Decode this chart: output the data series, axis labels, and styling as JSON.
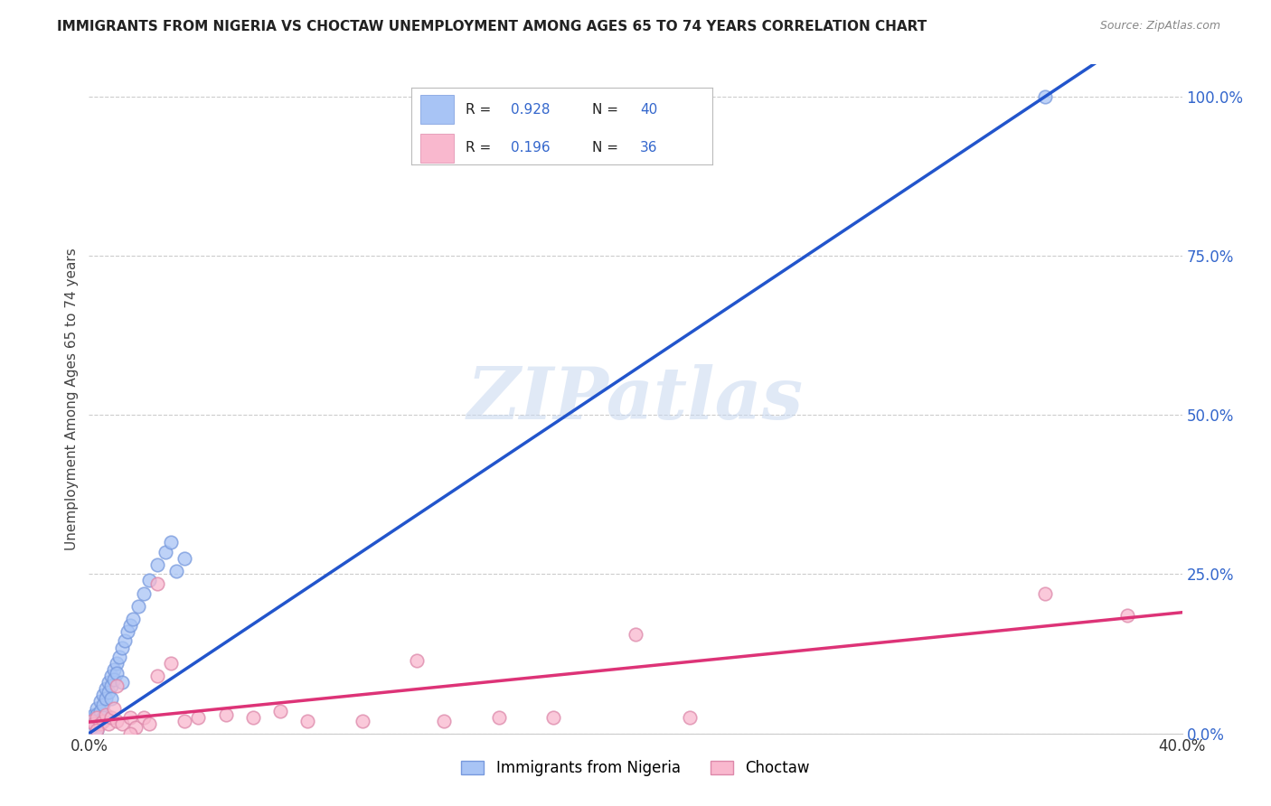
{
  "title": "IMMIGRANTS FROM NIGERIA VS CHOCTAW UNEMPLOYMENT AMONG AGES 65 TO 74 YEARS CORRELATION CHART",
  "source": "Source: ZipAtlas.com",
  "ylabel": "Unemployment Among Ages 65 to 74 years",
  "xmin": 0.0,
  "xmax": 0.4,
  "ymin": 0.0,
  "ymax": 1.05,
  "watermark": "ZIPatlas",
  "R_nigeria": 0.928,
  "N_nigeria": 40,
  "R_choctaw": 0.196,
  "N_choctaw": 36,
  "ytick_vals": [
    0.0,
    0.25,
    0.5,
    0.75,
    1.0
  ],
  "ytick_labels": [
    "0.0%",
    "25.0%",
    "50.0%",
    "75.0%",
    "100.0%"
  ],
  "xtick_vals": [
    0.0,
    0.4
  ],
  "xtick_labels": [
    "0.0%",
    "40.0%"
  ],
  "nigeria_color": "#a8c4f5",
  "choctaw_color": "#f9b8ce",
  "nigeria_line_color": "#2255cc",
  "choctaw_line_color": "#dd3377",
  "nigeria_edge_color": "#7799dd",
  "choctaw_edge_color": "#dd88aa",
  "grid_color": "#cccccc",
  "background_color": "#ffffff",
  "right_axis_color": "#3366cc",
  "legend_text_color": "#333333",
  "title_color": "#222222",
  "source_color": "#888888",
  "nigeria_x": [
    0.001,
    0.002,
    0.002,
    0.002,
    0.003,
    0.003,
    0.003,
    0.004,
    0.004,
    0.005,
    0.005,
    0.006,
    0.006,
    0.007,
    0.007,
    0.008,
    0.008,
    0.009,
    0.009,
    0.01,
    0.01,
    0.011,
    0.012,
    0.013,
    0.014,
    0.015,
    0.016,
    0.018,
    0.02,
    0.022,
    0.025,
    0.028,
    0.03,
    0.032,
    0.035,
    0.003,
    0.005,
    0.008,
    0.012,
    0.35
  ],
  "nigeria_y": [
    0.01,
    0.025,
    0.03,
    0.015,
    0.04,
    0.03,
    0.02,
    0.05,
    0.035,
    0.06,
    0.045,
    0.07,
    0.055,
    0.08,
    0.065,
    0.09,
    0.075,
    0.1,
    0.085,
    0.11,
    0.095,
    0.12,
    0.135,
    0.145,
    0.16,
    0.17,
    0.18,
    0.2,
    0.22,
    0.24,
    0.265,
    0.285,
    0.3,
    0.255,
    0.275,
    0.005,
    0.025,
    0.055,
    0.08,
    1.0
  ],
  "choctaw_x": [
    0.001,
    0.002,
    0.003,
    0.004,
    0.005,
    0.006,
    0.007,
    0.008,
    0.009,
    0.01,
    0.012,
    0.015,
    0.017,
    0.02,
    0.022,
    0.025,
    0.03,
    0.035,
    0.04,
    0.05,
    0.06,
    0.07,
    0.08,
    0.1,
    0.12,
    0.13,
    0.15,
    0.17,
    0.2,
    0.22,
    0.01,
    0.025,
    0.35,
    0.38,
    0.003,
    0.015
  ],
  "choctaw_y": [
    0.02,
    0.015,
    0.025,
    0.015,
    0.02,
    0.03,
    0.015,
    0.025,
    0.04,
    0.02,
    0.015,
    0.025,
    0.01,
    0.025,
    0.015,
    0.09,
    0.11,
    0.02,
    0.025,
    0.03,
    0.025,
    0.035,
    0.02,
    0.02,
    0.115,
    0.02,
    0.025,
    0.025,
    0.155,
    0.025,
    0.075,
    0.235,
    0.22,
    0.185,
    0.005,
    0.0
  ],
  "nig_slope": 2.857,
  "nig_intercept": 0.0,
  "cho_slope": 0.43,
  "cho_intercept": 0.018
}
